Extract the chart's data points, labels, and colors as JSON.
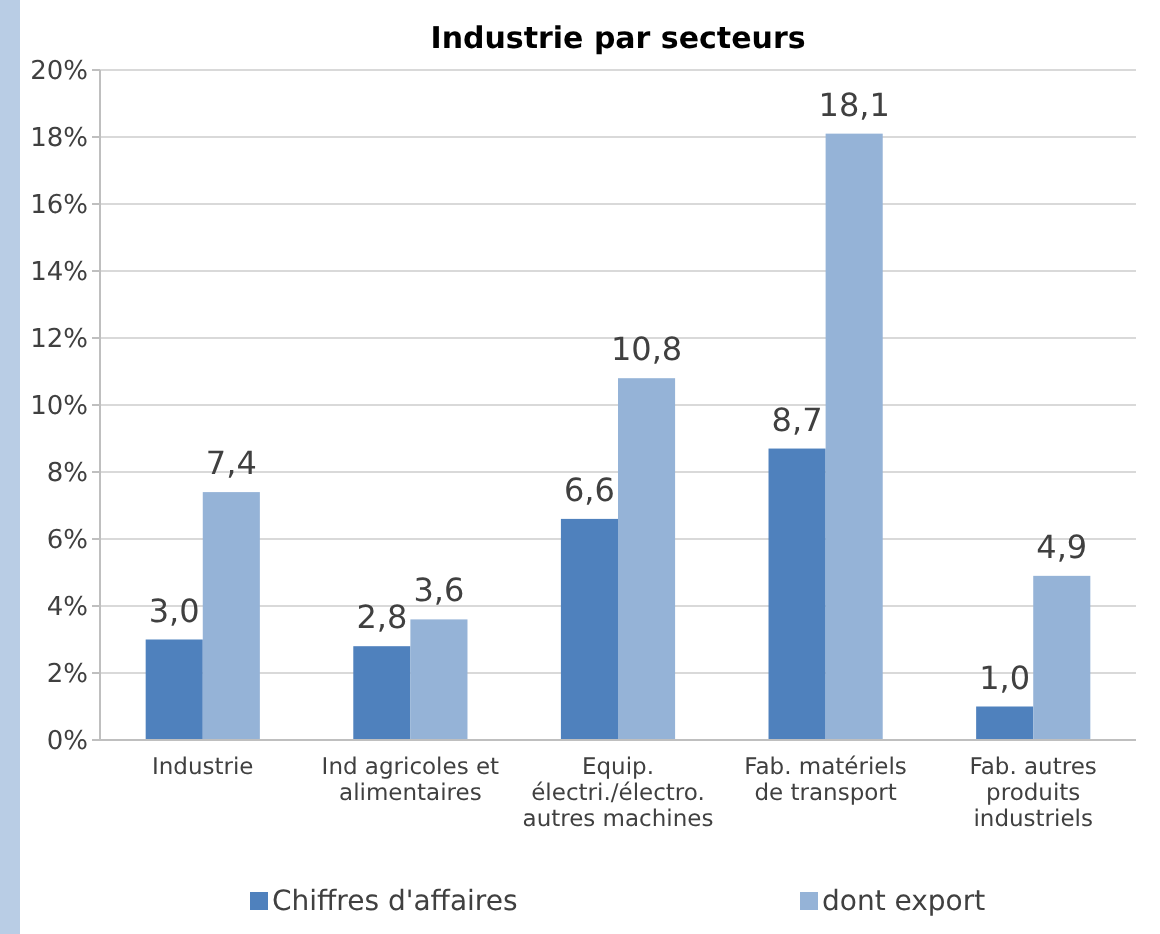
{
  "chart_data": {
    "type": "bar",
    "title": "Industrie par secteurs",
    "categories": [
      "Industrie",
      "Ind agricoles et alimentaires",
      "Equip. électri./électro. autres machines",
      "Fab. matériels de transport",
      "Fab. autres produits industriels"
    ],
    "series": [
      {
        "name": "Chiffres d'affaires",
        "color": "#4f81bd",
        "values": [
          3.0,
          2.8,
          6.6,
          8.7,
          1.0
        ],
        "value_labels": [
          "3,0",
          "2,8",
          "6,6",
          "8,7",
          "1,0"
        ]
      },
      {
        "name": "dont export",
        "color": "#95b3d7",
        "values": [
          7.4,
          3.6,
          10.8,
          18.1,
          4.9
        ],
        "value_labels": [
          "7,4",
          "3,6",
          "10,8",
          "18,1",
          "4,9"
        ]
      }
    ],
    "ylim": [
      0,
      20
    ],
    "yticks": [
      {
        "value": 0,
        "label": "0%"
      },
      {
        "value": 2,
        "label": "2%"
      },
      {
        "value": 4,
        "label": "4%"
      },
      {
        "value": 6,
        "label": "6%"
      },
      {
        "value": 8,
        "label": "8%"
      },
      {
        "value": 10,
        "label": "10%"
      },
      {
        "value": 12,
        "label": "12%"
      },
      {
        "value": 14,
        "label": "14%"
      },
      {
        "value": 16,
        "label": "16%"
      },
      {
        "value": 18,
        "label": "18%"
      },
      {
        "value": 20,
        "label": "20%"
      }
    ],
    "grid": "y",
    "legend": "bottom"
  }
}
